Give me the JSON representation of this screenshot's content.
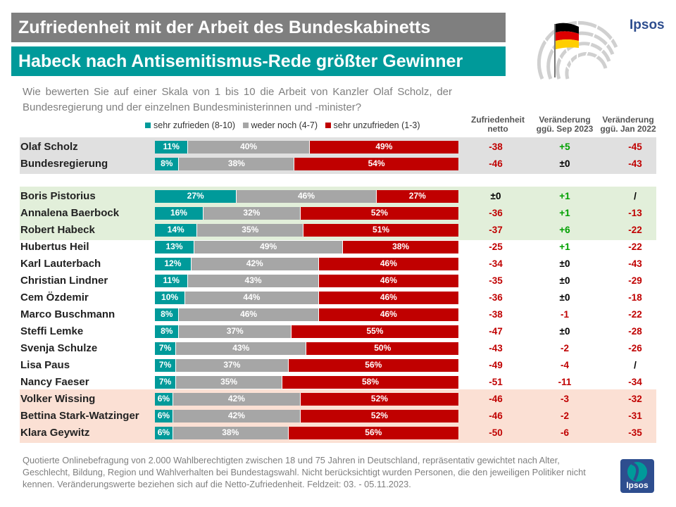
{
  "header": {
    "title": "Zufriedenheit mit der Arbeit des Bundeskabinetts",
    "subtitle": "Habeck nach Antisemitismus-Rede größter Gewinner",
    "logo_text": "Ipsos"
  },
  "question": "Wie bewerten Sie auf einer Skala von 1 bis 10 die Arbeit von Kanzler Olaf Scholz, der Bundesregierung und der einzelnen Bundesministerinnen und -minister?",
  "legend": {
    "items": [
      "sehr zufrieden (8-10)",
      "weder noch (4-7)",
      "sehr unzufrieden (1-3)"
    ]
  },
  "columns": {
    "netto": "Zufriedenheit netto",
    "sep": "Veränderung ggü. Sep 2023",
    "jan": "Veränderung ggü. Jan 2022"
  },
  "colors": {
    "satisfied": "#009a9a",
    "neutral": "#a6a6a6",
    "unsatisfied": "#c00000",
    "positive_change": "#00a000",
    "negative_change": "#c00000",
    "neutral_change": "#000000",
    "band_gray": "#e0e0e0",
    "band_green": "#e2efda",
    "band_orange": "#fbe0d4"
  },
  "chart_data": {
    "type": "bar",
    "stacked": "horizontal-100%",
    "series": [
      {
        "name": "sehr zufrieden (8-10)",
        "values": [
          11,
          8,
          27,
          16,
          14,
          13,
          12,
          11,
          10,
          8,
          8,
          7,
          7,
          7,
          6,
          6,
          6
        ]
      },
      {
        "name": "weder noch (4-7)",
        "values": [
          40,
          38,
          46,
          32,
          35,
          49,
          42,
          43,
          44,
          46,
          37,
          43,
          37,
          35,
          42,
          42,
          38
        ]
      },
      {
        "name": "sehr unzufrieden (1-3)",
        "values": [
          49,
          54,
          27,
          52,
          51,
          38,
          46,
          46,
          46,
          46,
          55,
          50,
          56,
          58,
          52,
          52,
          56
        ]
      }
    ],
    "rows": [
      {
        "name": "Olaf Scholz",
        "group": "gray",
        "netto": "-38",
        "sep": "+5",
        "jan": "-45"
      },
      {
        "name": "Bundesregierung",
        "group": "gray",
        "netto": "-46",
        "sep": "±0",
        "jan": "-43"
      },
      {
        "name": "Boris Pistorius",
        "group": "green",
        "netto": "±0",
        "sep": "+1",
        "jan": "/"
      },
      {
        "name": "Annalena Baerbock",
        "group": "green",
        "netto": "-36",
        "sep": "+1",
        "jan": "-13"
      },
      {
        "name": "Robert Habeck",
        "group": "green",
        "netto": "-37",
        "sep": "+6",
        "jan": "-22"
      },
      {
        "name": "Hubertus Heil",
        "group": "none",
        "netto": "-25",
        "sep": "+1",
        "jan": "-22"
      },
      {
        "name": "Karl Lauterbach",
        "group": "none",
        "netto": "-34",
        "sep": "±0",
        "jan": "-43"
      },
      {
        "name": "Christian Lindner",
        "group": "none",
        "netto": "-35",
        "sep": "±0",
        "jan": "-29"
      },
      {
        "name": "Cem Özdemir",
        "group": "none",
        "netto": "-36",
        "sep": "±0",
        "jan": "-18"
      },
      {
        "name": "Marco Buschmann",
        "group": "none",
        "netto": "-38",
        "sep": "-1",
        "jan": "-22"
      },
      {
        "name": "Steffi Lemke",
        "group": "none",
        "netto": "-47",
        "sep": "±0",
        "jan": "-28"
      },
      {
        "name": "Svenja Schulze",
        "group": "none",
        "netto": "-43",
        "sep": "-2",
        "jan": "-26"
      },
      {
        "name": "Lisa Paus",
        "group": "none",
        "netto": "-49",
        "sep": "-4",
        "jan": "/"
      },
      {
        "name": "Nancy Faeser",
        "group": "none",
        "netto": "-51",
        "sep": "-11",
        "jan": "-34"
      },
      {
        "name": "Volker Wissing",
        "group": "orange",
        "netto": "-46",
        "sep": "-3",
        "jan": "-32"
      },
      {
        "name": "Bettina Stark-Watzinger",
        "group": "orange",
        "netto": "-46",
        "sep": "-2",
        "jan": "-31"
      },
      {
        "name": "Klara Geywitz",
        "group": "orange",
        "netto": "-50",
        "sep": "-6",
        "jan": "-35"
      }
    ]
  },
  "footnote": "Quotierte Onlinebefragung von 2.000 Wahlberechtigten zwischen 18 und 75 Jahren in Deutschland, repräsentativ gewichtet nach Alter, Geschlecht, Bildung, Region und Wahlverhalten bei Bundestagswahl. Nicht berücksichtigt wurden Personen, die den jeweiligen Politiker nicht kennen. Veränderungswerte beziehen sich auf die Netto-Zufriedenheit. Feldzeit: 03. - 05.11.2023."
}
